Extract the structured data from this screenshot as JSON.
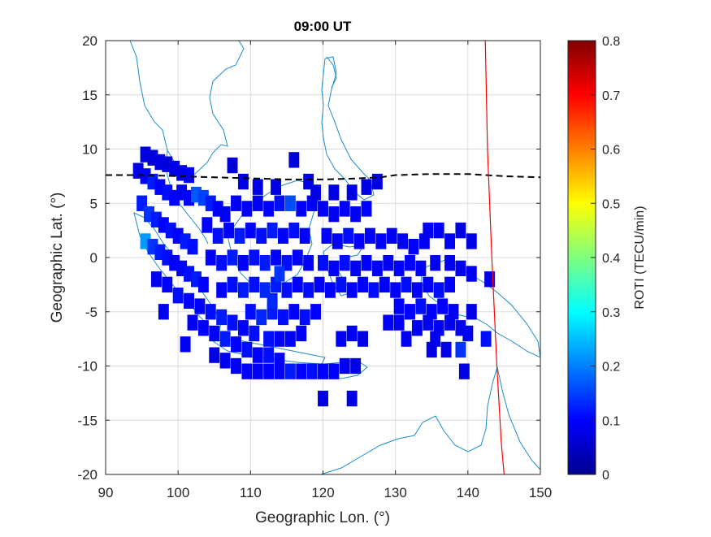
{
  "chart_data": {
    "type": "heatmap",
    "title": "09:00 UT",
    "xlabel": "Geographic Lon. (°)",
    "ylabel": "Geographic Lat. (°)",
    "xlim": [
      90,
      150
    ],
    "ylim": [
      -20,
      20
    ],
    "xticks": [
      90,
      100,
      110,
      120,
      130,
      140,
      150
    ],
    "yticks": [
      20,
      15,
      10,
      5,
      0,
      -5,
      -10,
      -15,
      -20
    ],
    "xtick_labels": [
      "90",
      "100",
      "110",
      "120",
      "130",
      "140",
      "150"
    ],
    "ytick_labels": [
      "20",
      "15",
      "10",
      "5",
      "0",
      "-5",
      "-10",
      "-15",
      "-20"
    ],
    "grid": true,
    "colorbar": {
      "label": "ROTI (TECU/min)",
      "colormap": "jet",
      "range": [
        0,
        0.8
      ],
      "ticks": [
        0,
        0.1,
        0.2,
        0.3,
        0.4,
        0.5,
        0.6,
        0.7,
        0.8
      ],
      "tick_labels": [
        "0",
        "0.1",
        "0.2",
        "0.3",
        "0.4",
        "0.5",
        "0.6",
        "0.7",
        "0.8"
      ]
    },
    "magnetic_equator_dashed": {
      "x": [
        90,
        95,
        100,
        105,
        110,
        115,
        120,
        125,
        128,
        130,
        135,
        140,
        145,
        150
      ],
      "y": [
        7.6,
        7.6,
        7.5,
        7.4,
        7.3,
        7.2,
        7.2,
        7.3,
        7.4,
        7.6,
        7.7,
        7.7,
        7.5,
        7.4
      ],
      "color": "#000000"
    },
    "red_meridian_line": {
      "x": [
        142.4,
        142.7,
        143.3,
        144.0,
        144.6,
        145.0
      ],
      "y": [
        20,
        10,
        0,
        -10,
        -17,
        -20
      ],
      "color": "#ff0000"
    },
    "cells": [
      {
        "lon": 95.5,
        "lat": 9.5,
        "v": 0.08
      },
      {
        "lon": 96.5,
        "lat": 9.2,
        "v": 0.07
      },
      {
        "lon": 97.5,
        "lat": 8.8,
        "v": 0.08
      },
      {
        "lon": 98.5,
        "lat": 8.6,
        "v": 0.07
      },
      {
        "lon": 99.5,
        "lat": 8.2,
        "v": 0.08
      },
      {
        "lon": 100.5,
        "lat": 7.8,
        "v": 0.08
      },
      {
        "lon": 101.5,
        "lat": 7.6,
        "v": 0.09
      },
      {
        "lon": 94.5,
        "lat": 8.0,
        "v": 0.08
      },
      {
        "lon": 95.5,
        "lat": 7.5,
        "v": 0.1
      },
      {
        "lon": 96.5,
        "lat": 7.0,
        "v": 0.12
      },
      {
        "lon": 97.5,
        "lat": 6.5,
        "v": 0.1
      },
      {
        "lon": 98.5,
        "lat": 6.0,
        "v": 0.11
      },
      {
        "lon": 99.5,
        "lat": 5.5,
        "v": 0.1
      },
      {
        "lon": 100.5,
        "lat": 6.0,
        "v": 0.09
      },
      {
        "lon": 101.5,
        "lat": 5.5,
        "v": 0.1
      },
      {
        "lon": 102.5,
        "lat": 5.8,
        "v": 0.17
      },
      {
        "lon": 103.5,
        "lat": 5.5,
        "v": 0.15
      },
      {
        "lon": 104.5,
        "lat": 5.0,
        "v": 0.12
      },
      {
        "lon": 105.5,
        "lat": 4.5,
        "v": 0.1
      },
      {
        "lon": 106.5,
        "lat": 4.0,
        "v": 0.09
      },
      {
        "lon": 95.0,
        "lat": 5.0,
        "v": 0.12
      },
      {
        "lon": 96.0,
        "lat": 4.0,
        "v": 0.14
      },
      {
        "lon": 97.0,
        "lat": 3.5,
        "v": 0.12
      },
      {
        "lon": 98.0,
        "lat": 3.0,
        "v": 0.1
      },
      {
        "lon": 99.0,
        "lat": 2.5,
        "v": 0.11
      },
      {
        "lon": 100.0,
        "lat": 2.0,
        "v": 0.1
      },
      {
        "lon": 101.0,
        "lat": 1.5,
        "v": 0.12
      },
      {
        "lon": 102.0,
        "lat": 1.0,
        "v": 0.11
      },
      {
        "lon": 95.5,
        "lat": 1.5,
        "v": 0.22
      },
      {
        "lon": 96.5,
        "lat": 1.0,
        "v": 0.14
      },
      {
        "lon": 97.5,
        "lat": 0.5,
        "v": 0.12
      },
      {
        "lon": 98.5,
        "lat": 0.0,
        "v": 0.11
      },
      {
        "lon": 99.5,
        "lat": -0.5,
        "v": 0.1
      },
      {
        "lon": 100.5,
        "lat": -1.0,
        "v": 0.1
      },
      {
        "lon": 101.5,
        "lat": -1.5,
        "v": 0.11
      },
      {
        "lon": 102.5,
        "lat": -2.0,
        "v": 0.12
      },
      {
        "lon": 103.5,
        "lat": -2.5,
        "v": 0.1
      },
      {
        "lon": 97.0,
        "lat": -2.0,
        "v": 0.09
      },
      {
        "lon": 98.5,
        "lat": -2.5,
        "v": 0.1
      },
      {
        "lon": 100.0,
        "lat": -3.5,
        "v": 0.11
      },
      {
        "lon": 101.5,
        "lat": -4.0,
        "v": 0.1
      },
      {
        "lon": 103.0,
        "lat": -4.5,
        "v": 0.1
      },
      {
        "lon": 104.5,
        "lat": -5.0,
        "v": 0.11
      },
      {
        "lon": 106.0,
        "lat": -5.5,
        "v": 0.12
      },
      {
        "lon": 107.5,
        "lat": -6.0,
        "v": 0.11
      },
      {
        "lon": 109.0,
        "lat": -6.5,
        "v": 0.1
      },
      {
        "lon": 110.5,
        "lat": -7.0,
        "v": 0.11
      },
      {
        "lon": 102.0,
        "lat": -6.0,
        "v": 0.09
      },
      {
        "lon": 103.5,
        "lat": -6.5,
        "v": 0.1
      },
      {
        "lon": 105.0,
        "lat": -7.0,
        "v": 0.1
      },
      {
        "lon": 106.5,
        "lat": -7.5,
        "v": 0.12
      },
      {
        "lon": 108.0,
        "lat": -8.0,
        "v": 0.1
      },
      {
        "lon": 109.5,
        "lat": -8.5,
        "v": 0.11
      },
      {
        "lon": 111.0,
        "lat": -9.0,
        "v": 0.1
      },
      {
        "lon": 112.5,
        "lat": -9.0,
        "v": 0.11
      },
      {
        "lon": 114.0,
        "lat": -9.5,
        "v": 0.1
      },
      {
        "lon": 105.0,
        "lat": -9.0,
        "v": 0.08
      },
      {
        "lon": 106.5,
        "lat": -9.5,
        "v": 0.09
      },
      {
        "lon": 108.0,
        "lat": -10.0,
        "v": 0.09
      },
      {
        "lon": 109.5,
        "lat": -10.5,
        "v": 0.1
      },
      {
        "lon": 111.0,
        "lat": -10.5,
        "v": 0.09
      },
      {
        "lon": 112.5,
        "lat": -10.5,
        "v": 0.1
      },
      {
        "lon": 114.0,
        "lat": -10.5,
        "v": 0.1
      },
      {
        "lon": 115.5,
        "lat": -10.5,
        "v": 0.12
      },
      {
        "lon": 117.0,
        "lat": -10.5,
        "v": 0.1
      },
      {
        "lon": 118.5,
        "lat": -10.5,
        "v": 0.11
      },
      {
        "lon": 120.0,
        "lat": -10.5,
        "v": 0.1
      },
      {
        "lon": 121.5,
        "lat": -10.5,
        "v": 0.1
      },
      {
        "lon": 123.0,
        "lat": -10.0,
        "v": 0.09
      },
      {
        "lon": 124.5,
        "lat": -10.0,
        "v": 0.08
      },
      {
        "lon": 104.0,
        "lat": 3.0,
        "v": 0.1
      },
      {
        "lon": 105.5,
        "lat": 2.0,
        "v": 0.11
      },
      {
        "lon": 107.0,
        "lat": 2.5,
        "v": 0.1
      },
      {
        "lon": 108.5,
        "lat": 2.0,
        "v": 0.12
      },
      {
        "lon": 110.0,
        "lat": 2.5,
        "v": 0.1
      },
      {
        "lon": 111.5,
        "lat": 2.0,
        "v": 0.11
      },
      {
        "lon": 113.0,
        "lat": 2.5,
        "v": 0.12
      },
      {
        "lon": 114.5,
        "lat": 2.0,
        "v": 0.1
      },
      {
        "lon": 116.0,
        "lat": 2.5,
        "v": 0.11
      },
      {
        "lon": 117.5,
        "lat": 2.0,
        "v": 0.1
      },
      {
        "lon": 104.5,
        "lat": 0.0,
        "v": 0.1
      },
      {
        "lon": 106.0,
        "lat": -0.5,
        "v": 0.11
      },
      {
        "lon": 107.5,
        "lat": 0.0,
        "v": 0.12
      },
      {
        "lon": 109.0,
        "lat": -0.5,
        "v": 0.1
      },
      {
        "lon": 110.5,
        "lat": 0.0,
        "v": 0.11
      },
      {
        "lon": 112.0,
        "lat": -0.5,
        "v": 0.12
      },
      {
        "lon": 113.5,
        "lat": 0.0,
        "v": 0.1
      },
      {
        "lon": 115.0,
        "lat": -0.5,
        "v": 0.11
      },
      {
        "lon": 116.5,
        "lat": 0.0,
        "v": 0.1
      },
      {
        "lon": 118.0,
        "lat": -0.5,
        "v": 0.1
      },
      {
        "lon": 106.0,
        "lat": -3.0,
        "v": 0.1
      },
      {
        "lon": 107.5,
        "lat": -2.5,
        "v": 0.11
      },
      {
        "lon": 109.0,
        "lat": -3.0,
        "v": 0.12
      },
      {
        "lon": 110.5,
        "lat": -2.5,
        "v": 0.11
      },
      {
        "lon": 112.0,
        "lat": -3.0,
        "v": 0.13
      },
      {
        "lon": 113.5,
        "lat": -2.5,
        "v": 0.12
      },
      {
        "lon": 115.0,
        "lat": -3.0,
        "v": 0.11
      },
      {
        "lon": 116.5,
        "lat": -2.5,
        "v": 0.1
      },
      {
        "lon": 118.0,
        "lat": -3.0,
        "v": 0.11
      },
      {
        "lon": 119.5,
        "lat": -2.5,
        "v": 0.1
      },
      {
        "lon": 110.0,
        "lat": -5.0,
        "v": 0.11
      },
      {
        "lon": 111.5,
        "lat": -5.5,
        "v": 0.13
      },
      {
        "lon": 113.0,
        "lat": -5.0,
        "v": 0.12
      },
      {
        "lon": 114.5,
        "lat": -5.5,
        "v": 0.11
      },
      {
        "lon": 116.0,
        "lat": -5.0,
        "v": 0.1
      },
      {
        "lon": 117.5,
        "lat": -5.5,
        "v": 0.11
      },
      {
        "lon": 119.0,
        "lat": -5.0,
        "v": 0.1
      },
      {
        "lon": 112.5,
        "lat": -7.5,
        "v": 0.11
      },
      {
        "lon": 114.0,
        "lat": -7.5,
        "v": 0.1
      },
      {
        "lon": 115.5,
        "lat": -7.5,
        "v": 0.1
      },
      {
        "lon": 117.0,
        "lat": -7.0,
        "v": 0.09
      },
      {
        "lon": 108.0,
        "lat": 5.0,
        "v": 0.09
      },
      {
        "lon": 109.5,
        "lat": 4.5,
        "v": 0.1
      },
      {
        "lon": 111.0,
        "lat": 5.0,
        "v": 0.09
      },
      {
        "lon": 112.5,
        "lat": 4.5,
        "v": 0.1
      },
      {
        "lon": 114.0,
        "lat": 5.0,
        "v": 0.11
      },
      {
        "lon": 115.5,
        "lat": 5.0,
        "v": 0.16
      },
      {
        "lon": 117.0,
        "lat": 4.5,
        "v": 0.1
      },
      {
        "lon": 118.5,
        "lat": 5.0,
        "v": 0.09
      },
      {
        "lon": 120.0,
        "lat": 4.5,
        "v": 0.1
      },
      {
        "lon": 121.5,
        "lat": 4.0,
        "v": 0.09
      },
      {
        "lon": 123.0,
        "lat": 4.5,
        "v": 0.1
      },
      {
        "lon": 124.5,
        "lat": 4.0,
        "v": 0.09
      },
      {
        "lon": 126.0,
        "lat": 4.5,
        "v": 0.1
      },
      {
        "lon": 107.5,
        "lat": 8.5,
        "v": 0.07
      },
      {
        "lon": 109.0,
        "lat": 7.0,
        "v": 0.08
      },
      {
        "lon": 111.0,
        "lat": 6.5,
        "v": 0.08
      },
      {
        "lon": 113.5,
        "lat": 6.5,
        "v": 0.08
      },
      {
        "lon": 116.0,
        "lat": 9.0,
        "v": 0.07
      },
      {
        "lon": 118.0,
        "lat": 7.0,
        "v": 0.08
      },
      {
        "lon": 119.0,
        "lat": 6.0,
        "v": 0.08
      },
      {
        "lon": 121.5,
        "lat": 6.0,
        "v": 0.08
      },
      {
        "lon": 124.0,
        "lat": 6.0,
        "v": 0.08
      },
      {
        "lon": 126.0,
        "lat": 6.5,
        "v": 0.08
      },
      {
        "lon": 127.5,
        "lat": 7.0,
        "v": 0.08
      },
      {
        "lon": 120.5,
        "lat": 2.0,
        "v": 0.1
      },
      {
        "lon": 122.0,
        "lat": 1.5,
        "v": 0.1
      },
      {
        "lon": 123.5,
        "lat": 2.0,
        "v": 0.11
      },
      {
        "lon": 125.0,
        "lat": 1.5,
        "v": 0.1
      },
      {
        "lon": 126.5,
        "lat": 2.0,
        "v": 0.1
      },
      {
        "lon": 128.0,
        "lat": 1.5,
        "v": 0.1
      },
      {
        "lon": 129.5,
        "lat": 2.0,
        "v": 0.09
      },
      {
        "lon": 131.0,
        "lat": 1.5,
        "v": 0.1
      },
      {
        "lon": 132.5,
        "lat": 1.0,
        "v": 0.1
      },
      {
        "lon": 134.0,
        "lat": 1.5,
        "v": 0.09
      },
      {
        "lon": 120.0,
        "lat": -0.5,
        "v": 0.11
      },
      {
        "lon": 121.5,
        "lat": -1.0,
        "v": 0.1
      },
      {
        "lon": 123.0,
        "lat": -0.5,
        "v": 0.11
      },
      {
        "lon": 124.5,
        "lat": -1.0,
        "v": 0.1
      },
      {
        "lon": 126.0,
        "lat": -0.5,
        "v": 0.1
      },
      {
        "lon": 127.5,
        "lat": -1.0,
        "v": 0.1
      },
      {
        "lon": 129.0,
        "lat": -0.5,
        "v": 0.09
      },
      {
        "lon": 130.5,
        "lat": -1.0,
        "v": 0.1
      },
      {
        "lon": 132.0,
        "lat": -0.5,
        "v": 0.1
      },
      {
        "lon": 133.5,
        "lat": -1.0,
        "v": 0.1
      },
      {
        "lon": 121.0,
        "lat": -3.0,
        "v": 0.1
      },
      {
        "lon": 122.5,
        "lat": -2.5,
        "v": 0.11
      },
      {
        "lon": 124.0,
        "lat": -3.0,
        "v": 0.1
      },
      {
        "lon": 125.5,
        "lat": -2.5,
        "v": 0.1
      },
      {
        "lon": 127.0,
        "lat": -3.0,
        "v": 0.11
      },
      {
        "lon": 128.5,
        "lat": -2.5,
        "v": 0.1
      },
      {
        "lon": 130.0,
        "lat": -3.0,
        "v": 0.1
      },
      {
        "lon": 131.5,
        "lat": -2.5,
        "v": 0.11
      },
      {
        "lon": 133.0,
        "lat": -3.0,
        "v": 0.1
      },
      {
        "lon": 134.5,
        "lat": -2.5,
        "v": 0.1
      },
      {
        "lon": 136.0,
        "lat": -3.0,
        "v": 0.11
      },
      {
        "lon": 137.5,
        "lat": -2.5,
        "v": 0.1
      },
      {
        "lon": 130.5,
        "lat": -4.5,
        "v": 0.1
      },
      {
        "lon": 132.0,
        "lat": -5.0,
        "v": 0.1
      },
      {
        "lon": 133.5,
        "lat": -4.5,
        "v": 0.11
      },
      {
        "lon": 135.0,
        "lat": -5.0,
        "v": 0.1
      },
      {
        "lon": 136.5,
        "lat": -4.5,
        "v": 0.1
      },
      {
        "lon": 138.0,
        "lat": -5.0,
        "v": 0.09
      },
      {
        "lon": 122.5,
        "lat": -7.5,
        "v": 0.09
      },
      {
        "lon": 124.0,
        "lat": -7.0,
        "v": 0.09
      },
      {
        "lon": 125.5,
        "lat": -7.5,
        "v": 0.08
      },
      {
        "lon": 129.0,
        "lat": -6.0,
        "v": 0.09
      },
      {
        "lon": 130.5,
        "lat": -6.0,
        "v": 0.09
      },
      {
        "lon": 131.5,
        "lat": -7.5,
        "v": 0.09
      },
      {
        "lon": 133.0,
        "lat": -6.5,
        "v": 0.09
      },
      {
        "lon": 134.5,
        "lat": -6.0,
        "v": 0.09
      },
      {
        "lon": 136.0,
        "lat": -6.5,
        "v": 0.09
      },
      {
        "lon": 137.5,
        "lat": -6.0,
        "v": 0.09
      },
      {
        "lon": 135.5,
        "lat": -7.5,
        "v": 0.09
      },
      {
        "lon": 139.0,
        "lat": -6.5,
        "v": 0.09
      },
      {
        "lon": 134.5,
        "lat": 2.5,
        "v": 0.09
      },
      {
        "lon": 135.5,
        "lat": -0.5,
        "v": 0.09
      },
      {
        "lon": 136.0,
        "lat": 2.5,
        "v": 0.09
      },
      {
        "lon": 137.5,
        "lat": 1.5,
        "v": 0.09
      },
      {
        "lon": 139.0,
        "lat": 2.5,
        "v": 0.08
      },
      {
        "lon": 140.5,
        "lat": 1.5,
        "v": 0.08
      },
      {
        "lon": 137.5,
        "lat": -0.5,
        "v": 0.09
      },
      {
        "lon": 139.0,
        "lat": -1.0,
        "v": 0.09
      },
      {
        "lon": 140.5,
        "lat": -1.5,
        "v": 0.09
      },
      {
        "lon": 143.0,
        "lat": -2.0,
        "v": 0.08
      },
      {
        "lon": 140.5,
        "lat": -5.0,
        "v": 0.08
      },
      {
        "lon": 140.0,
        "lat": -7.0,
        "v": 0.09
      },
      {
        "lon": 142.5,
        "lat": -7.5,
        "v": 0.11
      },
      {
        "lon": 135.0,
        "lat": -8.5,
        "v": 0.08
      },
      {
        "lon": 137.0,
        "lat": -8.5,
        "v": 0.08
      },
      {
        "lon": 139.0,
        "lat": -8.5,
        "v": 0.14
      },
      {
        "lon": 139.5,
        "lat": -10.5,
        "v": 0.08
      },
      {
        "lon": 120.0,
        "lat": -13.0,
        "v": 0.08
      },
      {
        "lon": 124.0,
        "lat": -13.0,
        "v": 0.08
      },
      {
        "lon": 101.0,
        "lat": -8.0,
        "v": 0.09
      },
      {
        "lon": 98.0,
        "lat": -5.0,
        "v": 0.09
      },
      {
        "lon": 114.0,
        "lat": -1.5,
        "v": 0.14
      },
      {
        "lon": 113.0,
        "lat": -4.0,
        "v": 0.13
      }
    ]
  }
}
